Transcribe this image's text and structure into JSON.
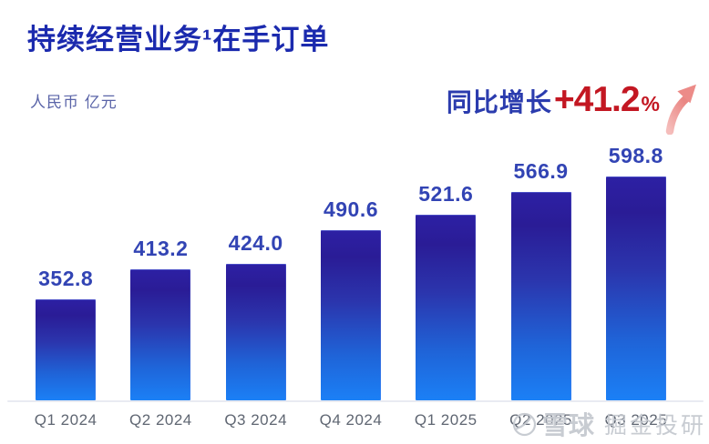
{
  "header": {
    "title": "持续经营业务¹在手订单",
    "unit_label": "人民币 亿元"
  },
  "growth": {
    "label": "同比增长",
    "value": "+41.2",
    "percent_sign": "%"
  },
  "chart_data": {
    "type": "bar",
    "title": "持续经营业务¹在手订单",
    "xlabel": "",
    "ylabel": "人民币 亿元",
    "categories": [
      "Q1 2024",
      "Q2 2024",
      "Q3 2024",
      "Q4 2024",
      "Q1 2025",
      "Q2 2025",
      "Q3 2025"
    ],
    "values": [
      352.8,
      413.2,
      424.0,
      490.6,
      521.6,
      566.9,
      598.8
    ],
    "value_labels": [
      "352.8",
      "413.2",
      "424.0",
      "490.6",
      "521.6",
      "566.9",
      "598.8"
    ],
    "ylim": [
      150,
      620
    ],
    "grid": false,
    "legend": false,
    "data_labels": true,
    "yoy_growth_pct": 41.2
  },
  "watermark": {
    "brand": "雪球",
    "account": "掘金投研",
    "logo": "xueqiu-snowball-icon"
  },
  "colors": {
    "title_blue": "#1b2aae",
    "subtitle_blue": "#5a64a8",
    "growth_blue": "#2b3cae",
    "growth_red": "#c31722",
    "value_blue": "#3244b4",
    "bar_edge": "#2d20a4",
    "bar_dark": "#2a1c96",
    "bar_mid": "#2b35ad",
    "bar_low": "#1f64d8",
    "bar_bottom": "#1b80f6",
    "axis_gray": "#e9ebf2",
    "tick_gray": "#5f6672",
    "watermark_gray": "#c4c8cf",
    "arrow_pink_light": "#f5bdbb",
    "arrow_pink_dark": "#ea8784"
  }
}
